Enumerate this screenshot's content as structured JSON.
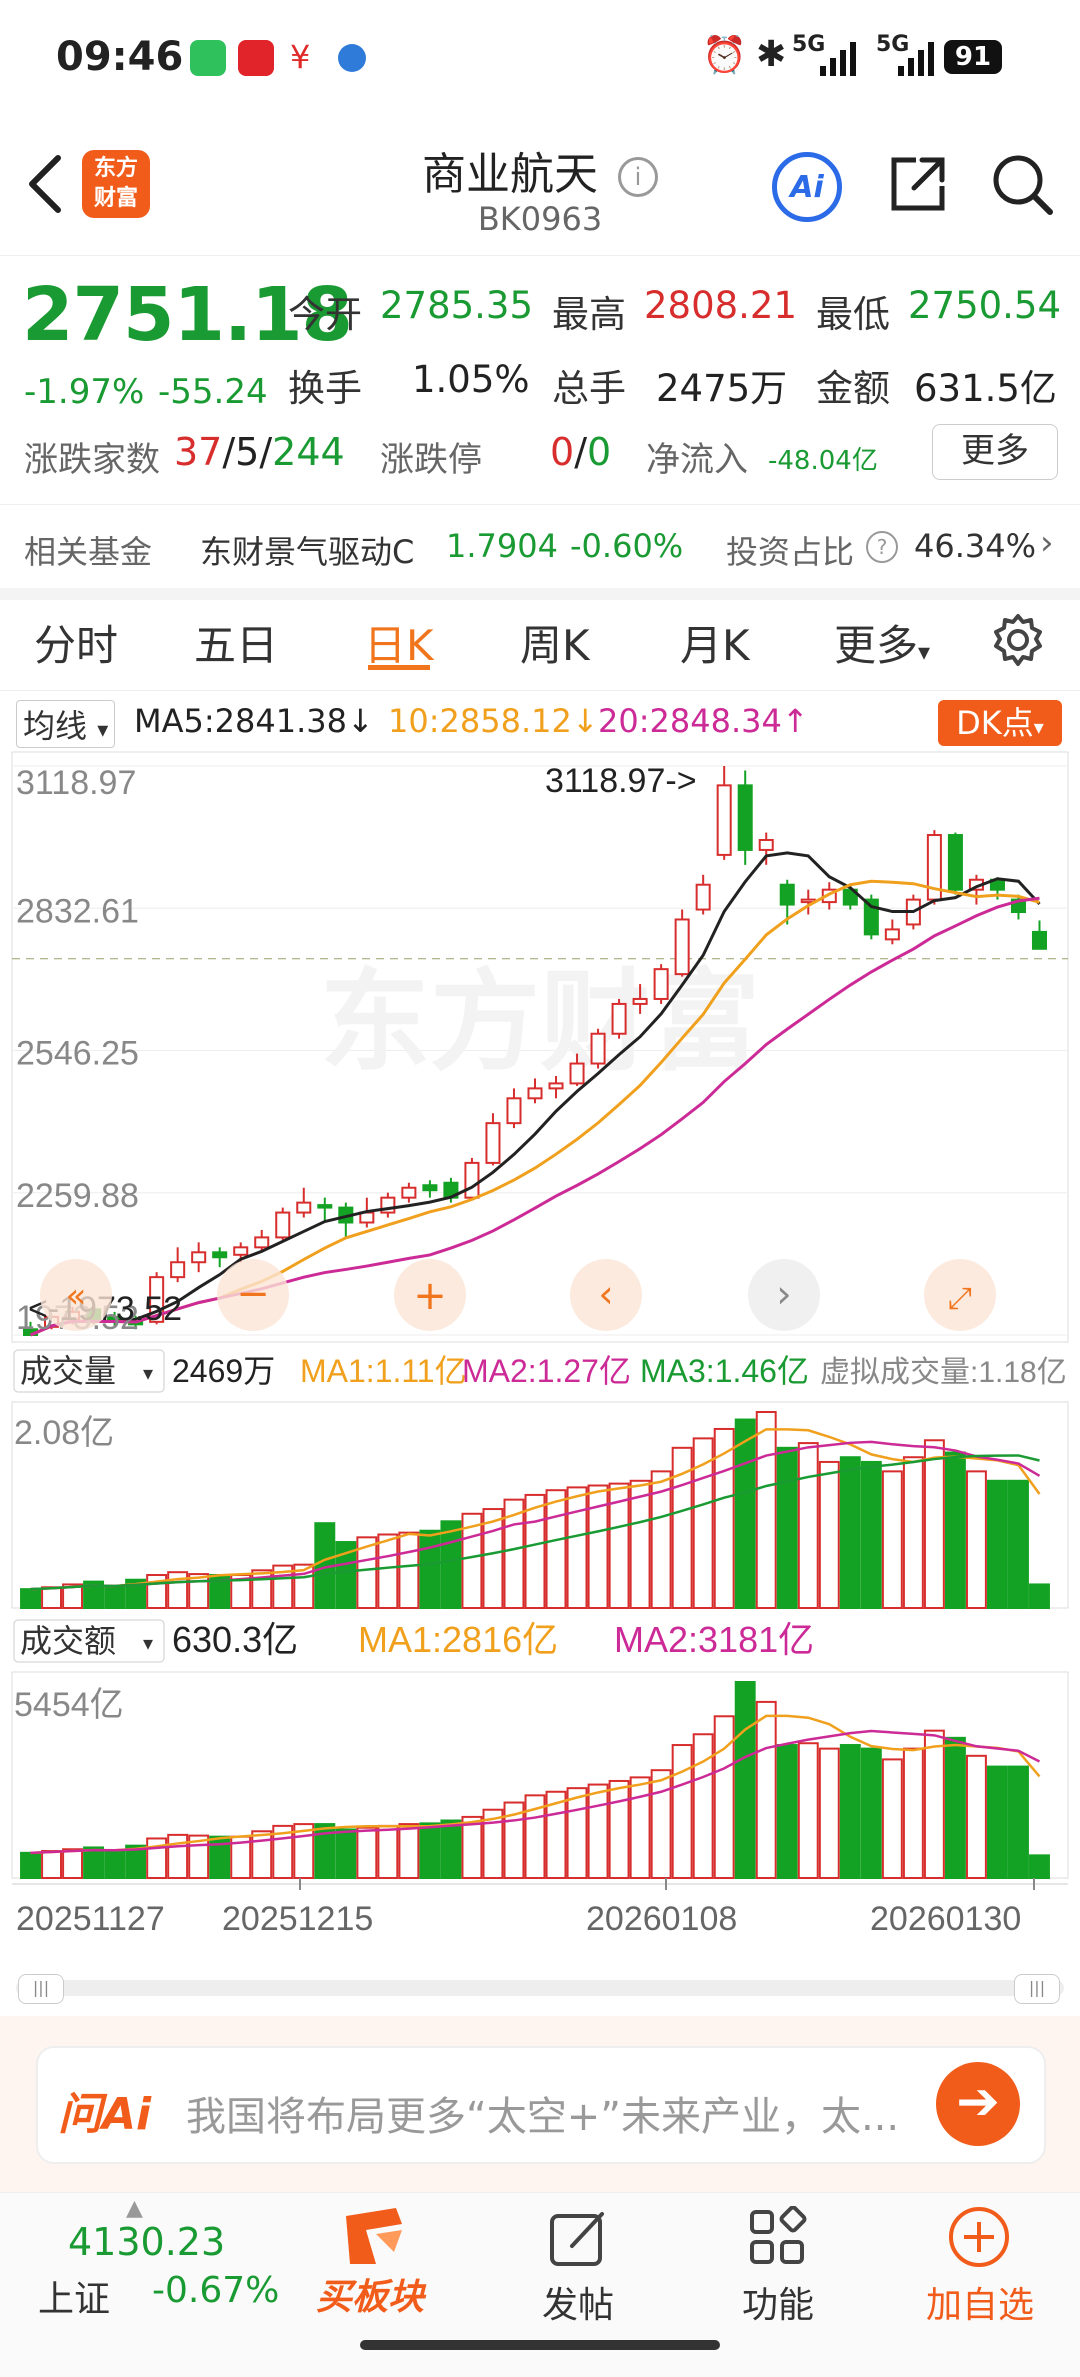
{
  "status_bar": {
    "time": "09:46",
    "signal_1": "5G",
    "signal_2": "5G",
    "battery": "91"
  },
  "header": {
    "back_icon": "chevron-left-icon",
    "logo_line1": "东方",
    "logo_line2": "财富",
    "title": "商业航天",
    "code": "BK0963",
    "ai_label": "Ai"
  },
  "quote": {
    "price": "2751.18",
    "change_pct": "-1.97%",
    "change_abs": "-55.24",
    "open_label": "今开",
    "open": "2785.35",
    "high_label": "最高",
    "high": "2808.21",
    "low_label": "最低",
    "low": "2750.54",
    "turnover_label": "换手",
    "turnover": "1.05%",
    "volume_label": "总手",
    "volume": "2475万",
    "amount_label": "金额",
    "amount": "631.5亿",
    "breadth_label": "涨跌家数",
    "breadth_up": "37",
    "breadth_flat": "5",
    "breadth_down": "244",
    "limit_label": "涨跌停",
    "limit_up": "0",
    "limit_down": "0",
    "netflow_label": "净流入",
    "netflow": "-48.04亿",
    "more_label": "更多"
  },
  "fund": {
    "label": "相关基金",
    "name": "东财景气驱动C",
    "nav": "1.7904",
    "change": "-0.60%",
    "ratio_label": "投资占比",
    "ratio": "46.34%"
  },
  "tabs": [
    {
      "label": "分时"
    },
    {
      "label": "五日"
    },
    {
      "label": "日K"
    },
    {
      "label": "周K"
    },
    {
      "label": "月K"
    },
    {
      "label": "更多"
    }
  ],
  "kline": {
    "ma_selector": "均线",
    "ma5": "MA5:2841.38",
    "ma10": "10:2858.12",
    "ma20": "20:2848.34",
    "dk_label": "DK点",
    "y_labels": [
      "3118.97",
      "2832.61",
      "2546.25",
      "2259.88",
      "1973.52"
    ],
    "max_annot": "3118.97->",
    "min_annot": "<-1973.52",
    "watermark": "东方财富",
    "colors": {
      "up": "#d72d2d",
      "down": "#13a223",
      "ma5": "#222222",
      "ma10": "#f0a01d",
      "ma20": "#cc2a96"
    }
  },
  "volume_panel": {
    "selector": "成交量",
    "current": "2469万",
    "ma1": "MA1:1.11亿",
    "ma2": "MA2:1.27亿",
    "ma3": "MA3:1.46亿",
    "virtual": "虚拟成交量:1.18亿",
    "max_label": "2.08亿"
  },
  "amount_panel": {
    "selector": "成交额",
    "current": "630.3亿",
    "ma1": "MA1:2816亿",
    "ma2": "MA2:3181亿",
    "max_label": "5454亿"
  },
  "x_dates": [
    "20251127",
    "20251215",
    "20260108",
    "20260130"
  ],
  "chart_data": {
    "type": "candlestick",
    "ylim": [
      1973.52,
      3118.97
    ],
    "candles": [
      {
        "o": 1985,
        "c": 1973.52,
        "h": 2000,
        "l": 1973.52,
        "v": 0.2,
        "a": 700
      },
      {
        "o": 1990,
        "c": 2010,
        "h": 2015,
        "l": 1985,
        "v": 0.22,
        "a": 750
      },
      {
        "o": 2005,
        "c": 2020,
        "h": 2030,
        "l": 1995,
        "v": 0.25,
        "a": 800
      },
      {
        "o": 2025,
        "c": 2000,
        "h": 2030,
        "l": 1995,
        "v": 0.28,
        "a": 850
      },
      {
        "o": 2010,
        "c": 2000,
        "h": 2020,
        "l": 1990,
        "v": 0.22,
        "a": 760
      },
      {
        "o": 2005,
        "c": 1995,
        "h": 2012,
        "l": 1985,
        "v": 0.3,
        "a": 900
      },
      {
        "o": 2000,
        "c": 2090,
        "h": 2100,
        "l": 1995,
        "v": 0.35,
        "a": 1100
      },
      {
        "o": 2090,
        "c": 2120,
        "h": 2150,
        "l": 2080,
        "v": 0.38,
        "a": 1200
      },
      {
        "o": 2120,
        "c": 2140,
        "h": 2160,
        "l": 2100,
        "v": 0.36,
        "a": 1180
      },
      {
        "o": 2140,
        "c": 2130,
        "h": 2150,
        "l": 2110,
        "v": 0.35,
        "a": 1150
      },
      {
        "o": 2135,
        "c": 2150,
        "h": 2160,
        "l": 2120,
        "v": 0.35,
        "a": 1150
      },
      {
        "o": 2150,
        "c": 2170,
        "h": 2185,
        "l": 2140,
        "v": 0.4,
        "a": 1300
      },
      {
        "o": 2170,
        "c": 2220,
        "h": 2230,
        "l": 2165,
        "v": 0.45,
        "a": 1450
      },
      {
        "o": 2220,
        "c": 2240,
        "h": 2270,
        "l": 2210,
        "v": 0.46,
        "a": 1500
      },
      {
        "o": 2235,
        "c": 2230,
        "h": 2250,
        "l": 2200,
        "v": 0.9,
        "a": 1500
      },
      {
        "o": 2230,
        "c": 2200,
        "h": 2240,
        "l": 2170,
        "v": 0.7,
        "a": 1350
      },
      {
        "o": 2200,
        "c": 2220,
        "h": 2250,
        "l": 2190,
        "v": 0.75,
        "a": 1400
      },
      {
        "o": 2220,
        "c": 2250,
        "h": 2260,
        "l": 2210,
        "v": 0.78,
        "a": 1450
      },
      {
        "o": 2250,
        "c": 2270,
        "h": 2280,
        "l": 2240,
        "v": 0.8,
        "a": 1500
      },
      {
        "o": 2275,
        "c": 2265,
        "h": 2285,
        "l": 2250,
        "v": 0.82,
        "a": 1520
      },
      {
        "o": 2280,
        "c": 2250,
        "h": 2290,
        "l": 2240,
        "v": 0.92,
        "a": 1600
      },
      {
        "o": 2250,
        "c": 2320,
        "h": 2330,
        "l": 2245,
        "v": 1.0,
        "a": 1700
      },
      {
        "o": 2320,
        "c": 2400,
        "h": 2420,
        "l": 2315,
        "v": 1.05,
        "a": 1900
      },
      {
        "o": 2400,
        "c": 2450,
        "h": 2470,
        "l": 2390,
        "v": 1.15,
        "a": 2100
      },
      {
        "o": 2450,
        "c": 2470,
        "h": 2490,
        "l": 2440,
        "v": 1.2,
        "a": 2300
      },
      {
        "o": 2470,
        "c": 2480,
        "h": 2495,
        "l": 2450,
        "v": 1.25,
        "a": 2400
      },
      {
        "o": 2480,
        "c": 2520,
        "h": 2540,
        "l": 2475,
        "v": 1.28,
        "a": 2500
      },
      {
        "o": 2520,
        "c": 2580,
        "h": 2590,
        "l": 2510,
        "v": 1.3,
        "a": 2600
      },
      {
        "o": 2580,
        "c": 2640,
        "h": 2650,
        "l": 2570,
        "v": 1.32,
        "a": 2700
      },
      {
        "o": 2640,
        "c": 2650,
        "h": 2680,
        "l": 2620,
        "v": 1.35,
        "a": 2800
      },
      {
        "o": 2650,
        "c": 2710,
        "h": 2720,
        "l": 2640,
        "v": 1.45,
        "a": 3000
      },
      {
        "o": 2700,
        "c": 2810,
        "h": 2830,
        "l": 2695,
        "v": 1.7,
        "a": 3700
      },
      {
        "o": 2830,
        "c": 2880,
        "h": 2900,
        "l": 2820,
        "v": 1.8,
        "a": 4000
      },
      {
        "o": 2940,
        "c": 3080,
        "h": 3118.97,
        "l": 2930,
        "v": 1.9,
        "a": 4500
      },
      {
        "o": 3080,
        "c": 2950,
        "h": 3110,
        "l": 2920,
        "v": 2.0,
        "a": 5454
      },
      {
        "o": 2950,
        "c": 2970,
        "h": 2985,
        "l": 2920,
        "v": 2.08,
        "a": 4900
      },
      {
        "o": 2880,
        "c": 2840,
        "h": 2890,
        "l": 2800,
        "v": 1.7,
        "a": 3700
      },
      {
        "o": 2845,
        "c": 2850,
        "h": 2870,
        "l": 2820,
        "v": 1.75,
        "a": 3750
      },
      {
        "o": 2845,
        "c": 2870,
        "h": 2885,
        "l": 2830,
        "v": 1.55,
        "a": 3600
      },
      {
        "o": 2870,
        "c": 2840,
        "h": 2880,
        "l": 2830,
        "v": 1.6,
        "a": 3700
      },
      {
        "o": 2850,
        "c": 2780,
        "h": 2860,
        "l": 2770,
        "v": 1.55,
        "a": 3600
      },
      {
        "o": 2770,
        "c": 2790,
        "h": 2810,
        "l": 2760,
        "v": 1.45,
        "a": 3300
      },
      {
        "o": 2800,
        "c": 2850,
        "h": 2860,
        "l": 2790,
        "v": 1.6,
        "a": 3600
      },
      {
        "o": 2850,
        "c": 2980,
        "h": 2990,
        "l": 2840,
        "v": 1.78,
        "a": 4100
      },
      {
        "o": 2980,
        "c": 2870,
        "h": 2985,
        "l": 2860,
        "v": 1.65,
        "a": 3900
      },
      {
        "o": 2870,
        "c": 2890,
        "h": 2900,
        "l": 2840,
        "v": 1.45,
        "a": 3400
      },
      {
        "o": 2890,
        "c": 2870,
        "h": 2895,
        "l": 2850,
        "v": 1.35,
        "a": 3100
      },
      {
        "o": 2850,
        "c": 2825,
        "h": 2860,
        "l": 2810,
        "v": 1.35,
        "a": 3100
      },
      {
        "o": 2785,
        "c": 2751,
        "h": 2808,
        "l": 2750,
        "v": 0.25,
        "a": 630
      }
    ]
  }
}
